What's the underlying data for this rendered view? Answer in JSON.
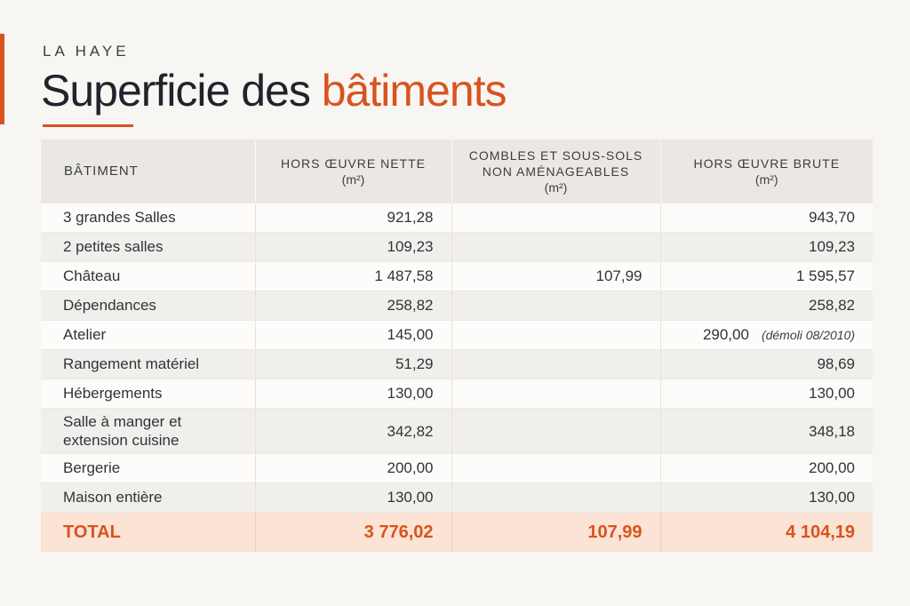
{
  "header": {
    "subtitle": "LA HAYE",
    "title_main": "Superficie des ",
    "title_accent": "bâtiments"
  },
  "table": {
    "columns": [
      {
        "label": "BÂTIMENT",
        "unit": ""
      },
      {
        "label": "HORS ŒUVRE NETTE",
        "unit": "(m²)"
      },
      {
        "label": "COMBLES ET SOUS-SOLS NON AMÉNAGEABLES",
        "unit": "(m²)"
      },
      {
        "label": "HORS ŒUVRE BRUTE",
        "unit": "(m²)"
      }
    ],
    "rows": [
      {
        "name": "3 grandes Salles",
        "hon": "921,28",
        "combles": "",
        "hob": "943,70",
        "note": ""
      },
      {
        "name": "2 petites salles",
        "hon": "109,23",
        "combles": "",
        "hob": "109,23",
        "note": ""
      },
      {
        "name": "Château",
        "hon": "1 487,58",
        "combles": "107,99",
        "hob": "1 595,57",
        "note": ""
      },
      {
        "name": "Dépendances",
        "hon": "258,82",
        "combles": "",
        "hob": "258,82",
        "note": ""
      },
      {
        "name": "Atelier",
        "hon": "145,00",
        "combles": "",
        "hob": "290,00",
        "note": "(démoli 08/2010)"
      },
      {
        "name": "Rangement matériel",
        "hon": "51,29",
        "combles": "",
        "hob": "98,69",
        "note": ""
      },
      {
        "name": "Hébergements",
        "hon": "130,00",
        "combles": "",
        "hob": "130,00",
        "note": ""
      },
      {
        "name": "Salle à manger et extension cuisine",
        "hon": "342,82",
        "combles": "",
        "hob": "348,18",
        "note": ""
      },
      {
        "name": "Bergerie",
        "hon": "200,00",
        "combles": "",
        "hob": "200,00",
        "note": ""
      },
      {
        "name": "Maison entière",
        "hon": "130,00",
        "combles": "",
        "hob": "130,00",
        "note": ""
      }
    ],
    "total": {
      "label": "TOTAL",
      "hon": "3 776,02",
      "combles": "107,99",
      "hob": "4 104,19"
    }
  },
  "colors": {
    "accent": "#d9531e",
    "total_bg": "#fbe3d5"
  }
}
